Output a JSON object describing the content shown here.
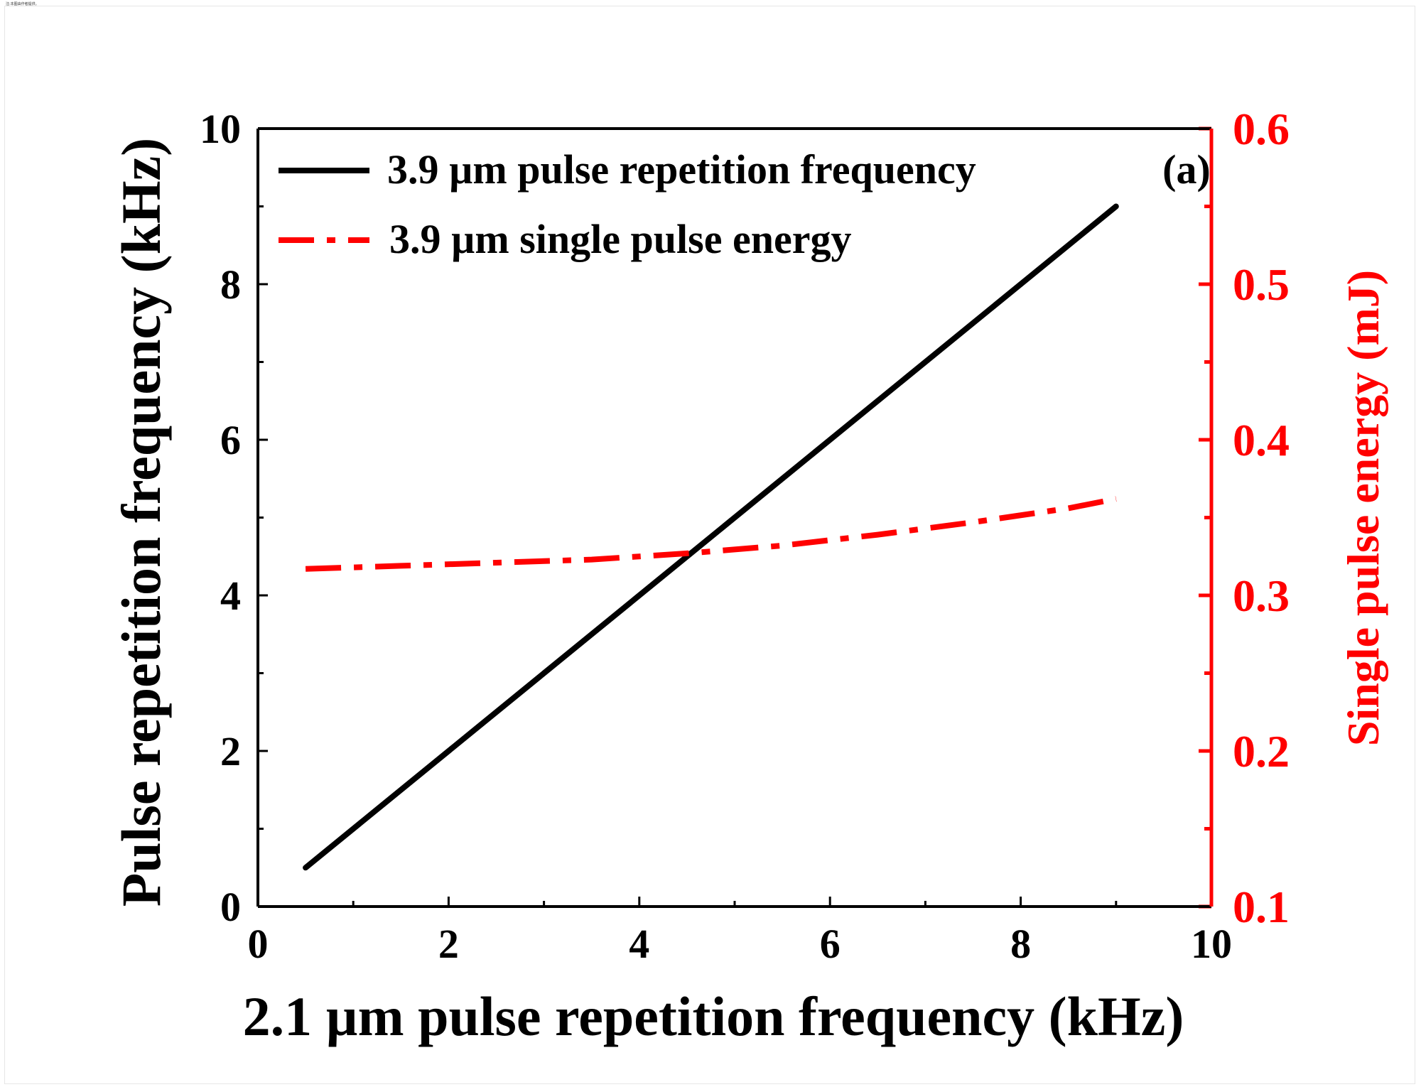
{
  "top_note": "注:本图由作者提供。",
  "chart_data": {
    "type": "line",
    "panel_label": "(a)",
    "xlabel": "2.1 µm pulse repetition frequency (kHz)",
    "ylabel_left": "Pulse repetition frequency (kHz)",
    "ylabel_right": "Single pulse energy (mJ)",
    "xlim": [
      0,
      10
    ],
    "ylim_left": [
      0,
      10
    ],
    "ylim_right": [
      0.1,
      0.6
    ],
    "x_ticks": [
      "0",
      "2",
      "4",
      "6",
      "8",
      "10"
    ],
    "x_tick_values": [
      0,
      2,
      4,
      6,
      8,
      10
    ],
    "y_left_ticks": [
      "0",
      "2",
      "4",
      "6",
      "8",
      "10"
    ],
    "y_left_tick_values": [
      0,
      2,
      4,
      6,
      8,
      10
    ],
    "y_right_ticks": [
      "0.1",
      "0.2",
      "0.3",
      "0.4",
      "0.5",
      "0.6"
    ],
    "y_right_tick_values": [
      0.1,
      0.2,
      0.3,
      0.4,
      0.5,
      0.6
    ],
    "legend_position": "top-left",
    "colors": {
      "frequency": "#000000",
      "energy": "#ff0000",
      "right_axis": "#ff0000"
    },
    "series": [
      {
        "name": "3.9 µm pulse repetition frequency",
        "axis": "left",
        "style": "solid",
        "x": [
          0.5,
          9.0
        ],
        "y": [
          0.5,
          9.0
        ]
      },
      {
        "name": "3.9 µm single pulse energy",
        "axis": "right",
        "style": "dash-dot",
        "x": [
          0.5,
          1.5,
          2.5,
          3.5,
          4.5,
          5.5,
          6.5,
          7.5,
          8.5,
          9.0
        ],
        "y": [
          0.317,
          0.319,
          0.321,
          0.323,
          0.327,
          0.332,
          0.339,
          0.347,
          0.356,
          0.362
        ]
      }
    ]
  }
}
